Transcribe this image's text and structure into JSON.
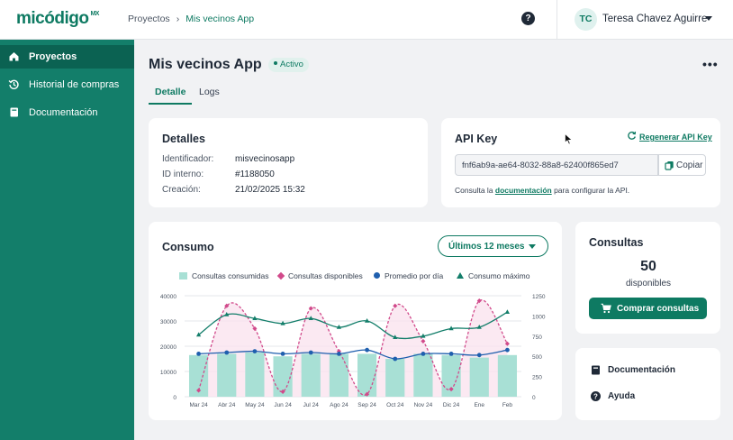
{
  "header": {
    "logo": "micódigo",
    "logo_suffix": "MX",
    "breadcrumb": [
      "Proyectos",
      "Mis vecinos App"
    ],
    "help_icon": "question-circle-icon",
    "user_initials": "TC",
    "user_name": "Teresa Chavez Aguirre"
  },
  "sidebar": {
    "items": [
      {
        "label": "Proyectos",
        "icon": "home-icon",
        "active": true
      },
      {
        "label": "Historial de compras",
        "icon": "history-icon",
        "active": false
      },
      {
        "label": "Documentación",
        "icon": "book-icon",
        "active": false
      }
    ]
  },
  "page": {
    "title": "Mis vecinos App",
    "status": "Activo",
    "tabs": [
      "Detalle",
      "Logs"
    ],
    "active_tab": "Detalle"
  },
  "details": {
    "title": "Detalles",
    "rows": [
      {
        "key": "Identificador:",
        "value": "misvecinosapp"
      },
      {
        "key": "ID interno:",
        "value": "#1188050"
      },
      {
        "key": "Creación:",
        "value": "21/02/2025 15:32"
      }
    ]
  },
  "api": {
    "title": "API Key",
    "regenerate_label": "Regenerar API Key",
    "key_value": "fnf6ab9a-ae64-8032-88a8-62400f865ed7",
    "copy_label": "Copiar",
    "note_prefix": "Consulta la ",
    "note_link": "documentación",
    "note_suffix": " para configurar la API."
  },
  "consumo": {
    "title": "Consumo",
    "period_label": "Últimos 12 meses"
  },
  "consultas": {
    "title": "Consultas",
    "count": "50",
    "count_label": "disponibles",
    "buy_label": "Comprar consultas"
  },
  "links": {
    "documentation": "Documentación",
    "help": "Ayuda"
  },
  "colors": {
    "brand": "#0e7a62",
    "sidebar": "#137e6a",
    "bar": "#a8e0d5",
    "disponibles": "#d14a8b",
    "promedio": "#1f5fae",
    "maximo": "#137e6a"
  },
  "chart_data": {
    "type": "bar",
    "categories": [
      "Mar 24",
      "Abr 24",
      "May 24",
      "Jun 24",
      "Jul 24",
      "Ago 24",
      "Sep 24",
      "Oct 24",
      "Nov 24",
      "Dic 24",
      "Ene",
      "Feb"
    ],
    "left_ticks": [
      "0",
      "10000",
      "20000",
      "30000",
      "40000"
    ],
    "right_ticks": [
      "0",
      "250",
      "500",
      "750",
      "1000",
      "1250"
    ],
    "ylim_left": [
      0,
      40000
    ],
    "ylim_right": [
      0,
      1250
    ],
    "grid": true,
    "legend_position": "top",
    "series": [
      {
        "name": "Consultas consumidas",
        "kind": "bar",
        "axis": "left",
        "values": [
          16500,
          17000,
          17500,
          16000,
          17000,
          17000,
          17000,
          15000,
          17000,
          16500,
          15500,
          16500
        ]
      },
      {
        "name": "Consultas disponibles",
        "kind": "line-dashed",
        "axis": "left",
        "values": [
          2500,
          36000,
          27000,
          2000,
          35000,
          18000,
          1000,
          36000,
          22000,
          3000,
          38000,
          21000
        ]
      },
      {
        "name": "Promedio por día",
        "kind": "line",
        "axis": "left",
        "values": [
          17000,
          17500,
          18000,
          17000,
          17500,
          17000,
          18500,
          15000,
          17000,
          17000,
          16500,
          18500
        ]
      },
      {
        "name": "Consumo máximo",
        "kind": "line",
        "axis": "left",
        "values": [
          24500,
          32500,
          31000,
          29000,
          31000,
          27500,
          30000,
          23500,
          24000,
          27000,
          27500,
          33500
        ]
      }
    ]
  }
}
